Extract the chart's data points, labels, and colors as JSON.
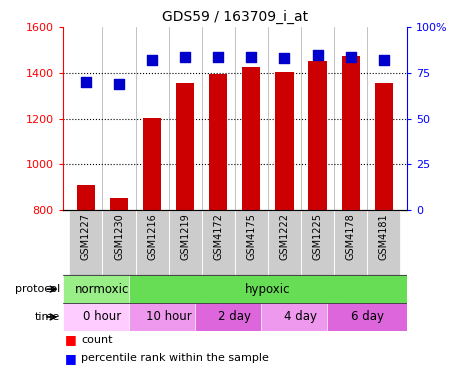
{
  "title": "GDS59 / 163709_i_at",
  "samples": [
    "GSM1227",
    "GSM1230",
    "GSM1216",
    "GSM1219",
    "GSM4172",
    "GSM4175",
    "GSM1222",
    "GSM1225",
    "GSM4178",
    "GSM4181"
  ],
  "counts": [
    910,
    855,
    1205,
    1355,
    1395,
    1425,
    1405,
    1455,
    1475,
    1355
  ],
  "percentiles": [
    70,
    69,
    82,
    84,
    84,
    84,
    83,
    85,
    84,
    82
  ],
  "ylim_left": [
    800,
    1600
  ],
  "ylim_right": [
    0,
    100
  ],
  "yticks_left": [
    800,
    1000,
    1200,
    1400,
    1600
  ],
  "yticks_right": [
    0,
    25,
    50,
    75,
    100
  ],
  "bar_color": "#cc0000",
  "dot_color": "#0000cc",
  "protocol_spans": [
    {
      "start": 0,
      "end": 2,
      "label": "normoxic",
      "color": "#99ee88"
    },
    {
      "start": 2,
      "end": 10,
      "label": "hypoxic",
      "color": "#66dd55"
    }
  ],
  "time_spans": [
    {
      "start": 0,
      "end": 2,
      "label": "0 hour",
      "color": "#ffccff"
    },
    {
      "start": 2,
      "end": 4,
      "label": "10 hour",
      "color": "#ee99ee"
    },
    {
      "start": 4,
      "end": 6,
      "label": "2 day",
      "color": "#dd66dd"
    },
    {
      "start": 6,
      "end": 8,
      "label": "4 day",
      "color": "#ee99ee"
    },
    {
      "start": 8,
      "end": 10,
      "label": "6 day",
      "color": "#dd66dd"
    }
  ],
  "sample_bg": "#cccccc",
  "bg_color": "#ffffff",
  "bar_width": 0.55,
  "dot_size": 45,
  "n_samples": 10
}
